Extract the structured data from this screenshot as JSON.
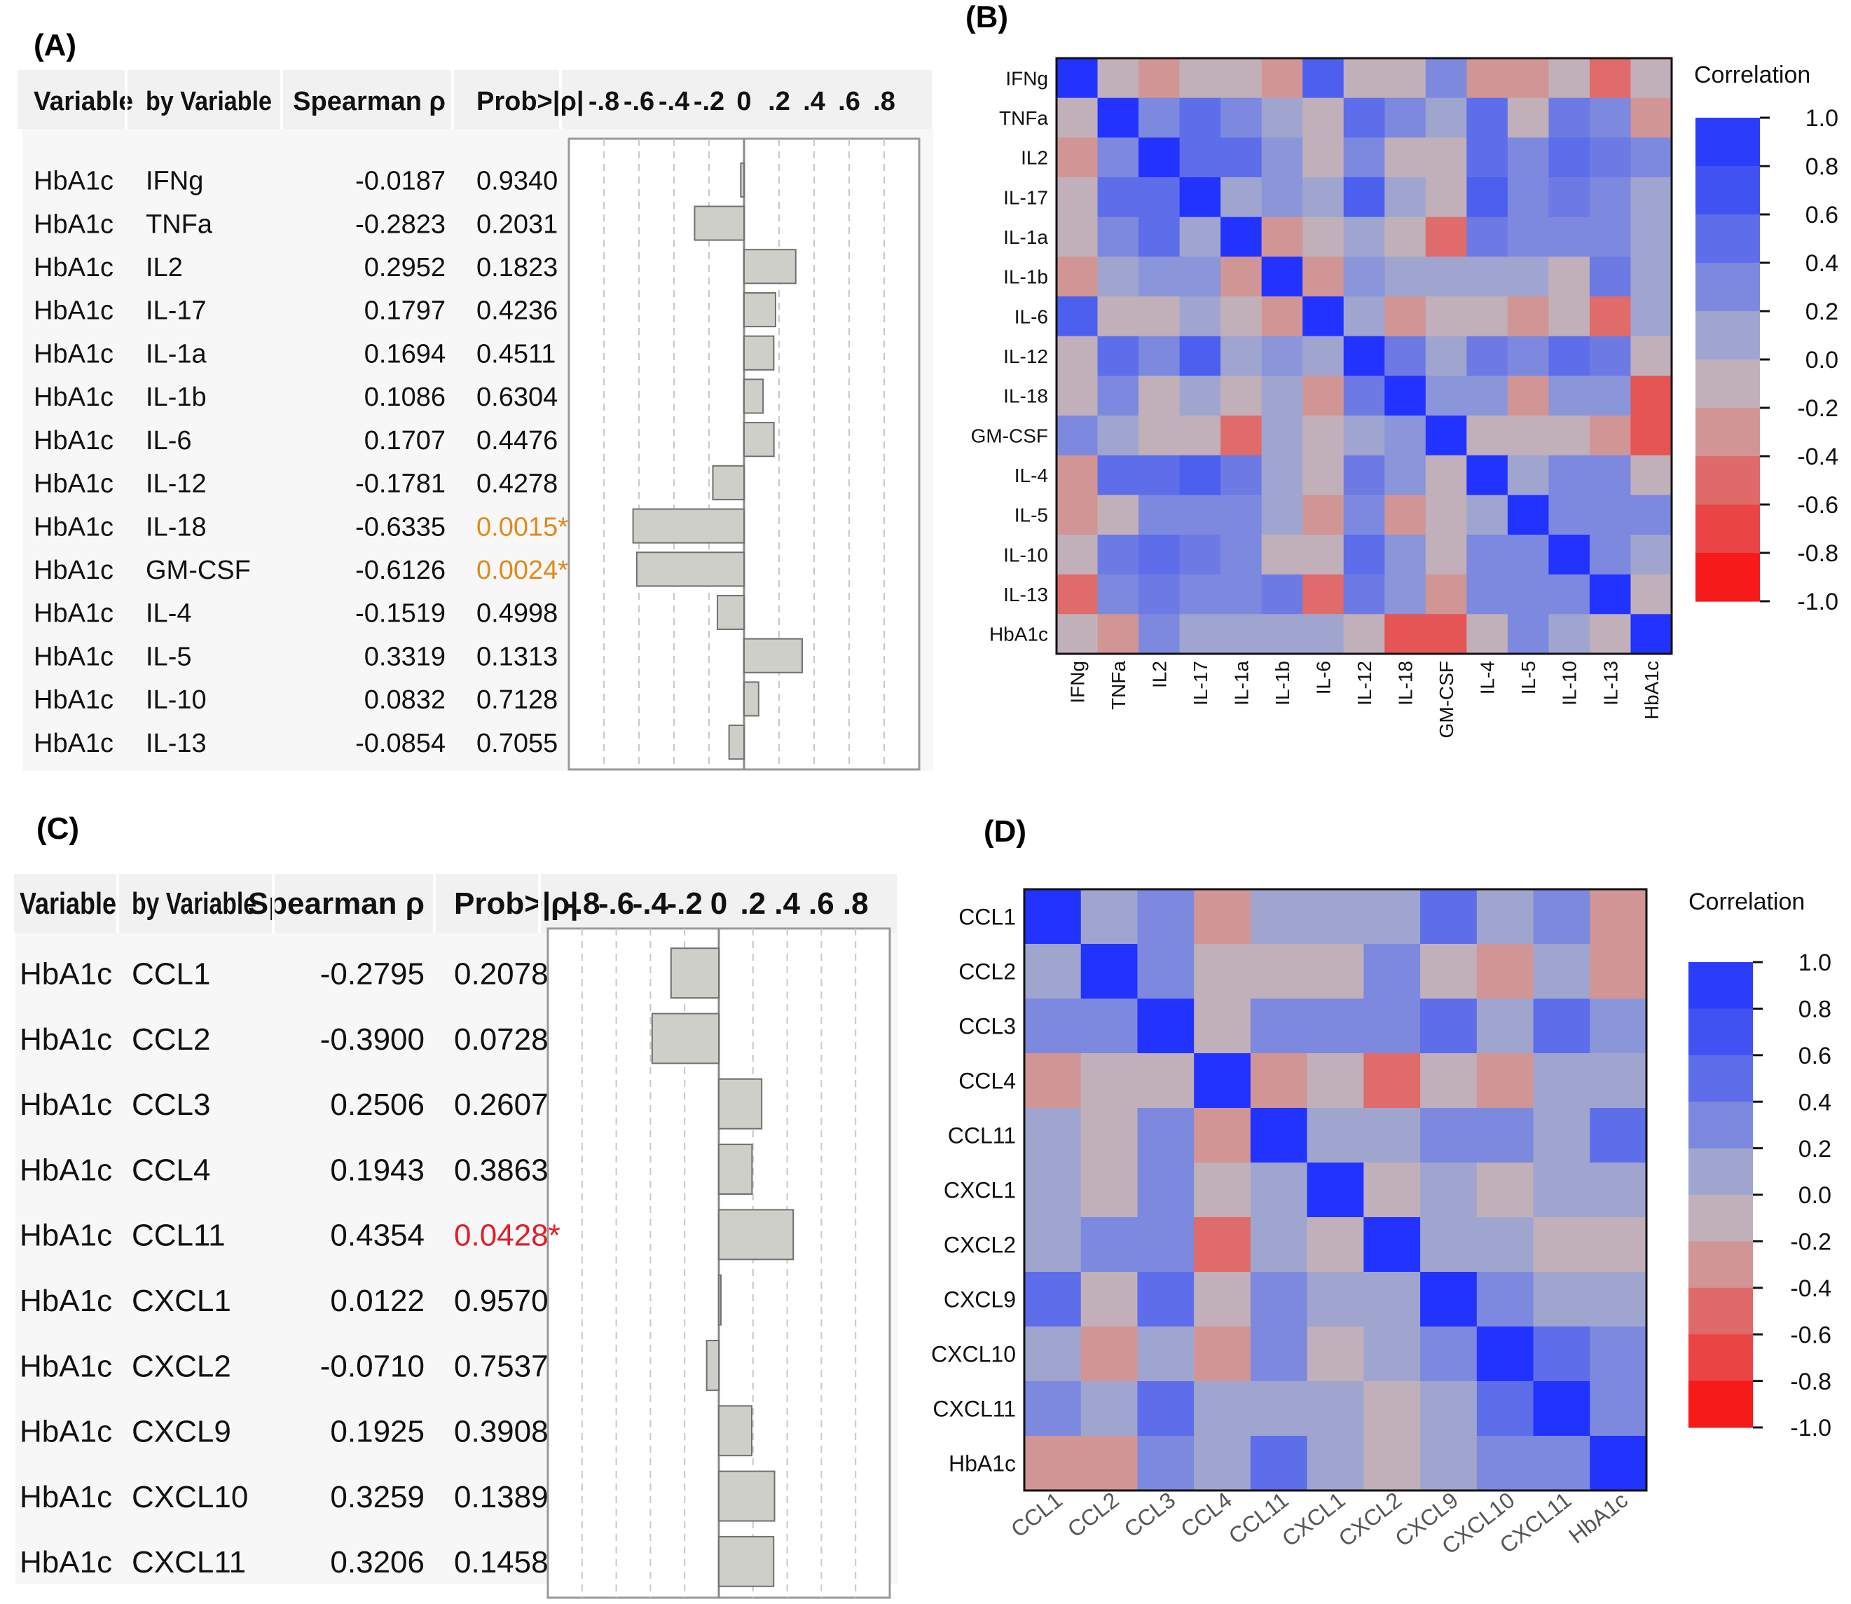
{
  "panel_labels": {
    "A": "(A)",
    "B": "(B)",
    "C": "(C)",
    "D": "(D)"
  },
  "colors": {
    "significant_orange": "#e08a1e",
    "significant_red": "#e0202a",
    "bar_fill": "#cfcfca",
    "bar_stroke": "#707070"
  },
  "chart_data": [
    {
      "type": "bar",
      "id": "A",
      "orientation": "horizontal",
      "headers": {
        "variable": "Variable",
        "by_variable": "by Variable",
        "rho": "Spearman ρ",
        "prob": "Prob>|ρ|"
      },
      "axis_tick_labels": [
        "-.8",
        "-.6",
        "-.4",
        "-.2",
        "0",
        ".2",
        ".4",
        ".6",
        ".8"
      ],
      "xlim": [
        -1,
        1
      ],
      "rows": [
        {
          "variable": "HbA1c",
          "by": "IFNg",
          "rho": "-0.0187",
          "value": -0.0187,
          "prob": "0.9340",
          "sig": false
        },
        {
          "variable": "HbA1c",
          "by": "TNFa",
          "rho": "-0.2823",
          "value": -0.2823,
          "prob": "0.2031",
          "sig": false
        },
        {
          "variable": "HbA1c",
          "by": "IL2",
          "rho": "0.2952",
          "value": 0.2952,
          "prob": "0.1823",
          "sig": false
        },
        {
          "variable": "HbA1c",
          "by": "IL-17",
          "rho": "0.1797",
          "value": 0.1797,
          "prob": "0.4236",
          "sig": false
        },
        {
          "variable": "HbA1c",
          "by": "IL-1a",
          "rho": "0.1694",
          "value": 0.1694,
          "prob": "0.4511",
          "sig": false
        },
        {
          "variable": "HbA1c",
          "by": "IL-1b",
          "rho": "0.1086",
          "value": 0.1086,
          "prob": "0.6304",
          "sig": false
        },
        {
          "variable": "HbA1c",
          "by": "IL-6",
          "rho": "0.1707",
          "value": 0.1707,
          "prob": "0.4476",
          "sig": false
        },
        {
          "variable": "HbA1c",
          "by": "IL-12",
          "rho": "-0.1781",
          "value": -0.1781,
          "prob": "0.4278",
          "sig": false
        },
        {
          "variable": "HbA1c",
          "by": "IL-18",
          "rho": "-0.6335",
          "value": -0.6335,
          "prob": "0.0015*",
          "sig": true
        },
        {
          "variable": "HbA1c",
          "by": "GM-CSF",
          "rho": "-0.6126",
          "value": -0.6126,
          "prob": "0.0024*",
          "sig": true
        },
        {
          "variable": "HbA1c",
          "by": "IL-4",
          "rho": "-0.1519",
          "value": -0.1519,
          "prob": "0.4998",
          "sig": false
        },
        {
          "variable": "HbA1c",
          "by": "IL-5",
          "rho": "0.3319",
          "value": 0.3319,
          "prob": "0.1313",
          "sig": false
        },
        {
          "variable": "HbA1c",
          "by": "IL-10",
          "rho": "0.0832",
          "value": 0.0832,
          "prob": "0.7128",
          "sig": false
        },
        {
          "variable": "HbA1c",
          "by": "IL-13",
          "rho": "-0.0854",
          "value": -0.0854,
          "prob": "0.7055",
          "sig": false
        }
      ]
    },
    {
      "type": "heatmap",
      "id": "B",
      "legend_title": "Correlation",
      "colorbar_ticks": [
        "1.0",
        "0.8",
        "0.6",
        "0.4",
        "0.2",
        "0.0",
        "-0.2",
        "-0.4",
        "-0.6",
        "-0.8",
        "-1.0"
      ],
      "zlim": [
        -1,
        1
      ],
      "labels": [
        "IFNg",
        "TNFa",
        "IL2",
        "IL-17",
        "IL-1a",
        "IL-1b",
        "IL-6",
        "IL-12",
        "IL-18",
        "GM-CSF",
        "IL-4",
        "IL-5",
        "IL-10",
        "IL-13",
        "HbA1c"
      ],
      "matrix": [
        [
          1.0,
          -0.1,
          -0.3,
          -0.1,
          -0.1,
          -0.3,
          0.6,
          -0.1,
          -0.1,
          0.3,
          -0.3,
          -0.3,
          -0.1,
          -0.5,
          -0.1
        ],
        [
          -0.1,
          1.0,
          0.3,
          0.5,
          0.3,
          0.1,
          -0.1,
          0.5,
          0.3,
          0.1,
          0.5,
          -0.1,
          0.4,
          0.3,
          -0.3
        ],
        [
          -0.3,
          0.3,
          1.0,
          0.5,
          0.5,
          0.2,
          -0.1,
          0.3,
          -0.1,
          -0.1,
          0.5,
          0.3,
          0.5,
          0.4,
          0.3
        ],
        [
          -0.1,
          0.5,
          0.5,
          1.0,
          0.1,
          0.2,
          0.1,
          0.6,
          0.1,
          -0.1,
          0.6,
          0.3,
          0.4,
          0.3,
          0.1
        ],
        [
          -0.1,
          0.3,
          0.5,
          0.1,
          1.0,
          -0.3,
          -0.1,
          0.1,
          -0.1,
          -0.5,
          0.4,
          0.3,
          0.3,
          0.3,
          0.1
        ],
        [
          -0.3,
          0.1,
          0.2,
          0.2,
          -0.3,
          1.0,
          -0.3,
          0.2,
          0.1,
          0.1,
          0.1,
          0.1,
          -0.1,
          0.4,
          0.1
        ],
        [
          0.6,
          -0.1,
          -0.1,
          0.1,
          -0.1,
          -0.3,
          1.0,
          0.1,
          -0.3,
          -0.1,
          -0.1,
          -0.3,
          -0.1,
          -0.5,
          0.1
        ],
        [
          -0.1,
          0.5,
          0.3,
          0.6,
          0.1,
          0.2,
          0.1,
          1.0,
          0.4,
          0.1,
          0.4,
          0.3,
          0.5,
          0.4,
          -0.1
        ],
        [
          -0.1,
          0.3,
          -0.1,
          0.1,
          -0.1,
          0.1,
          -0.3,
          0.4,
          1.0,
          0.2,
          0.2,
          -0.3,
          0.2,
          0.2,
          -0.6
        ],
        [
          0.3,
          0.1,
          -0.1,
          -0.1,
          -0.5,
          0.1,
          -0.1,
          0.1,
          0.2,
          1.0,
          -0.1,
          -0.1,
          -0.1,
          -0.3,
          -0.6
        ],
        [
          -0.3,
          0.5,
          0.5,
          0.6,
          0.4,
          0.1,
          -0.1,
          0.4,
          0.2,
          -0.1,
          1.0,
          0.1,
          0.3,
          0.3,
          -0.1
        ],
        [
          -0.3,
          -0.1,
          0.3,
          0.3,
          0.3,
          0.1,
          -0.3,
          0.3,
          -0.3,
          -0.1,
          0.1,
          1.0,
          0.3,
          0.3,
          0.3
        ],
        [
          -0.1,
          0.4,
          0.5,
          0.4,
          0.3,
          -0.1,
          -0.1,
          0.5,
          0.2,
          -0.1,
          0.3,
          0.3,
          1.0,
          0.3,
          0.1
        ],
        [
          -0.5,
          0.3,
          0.4,
          0.3,
          0.3,
          0.4,
          -0.5,
          0.4,
          0.2,
          -0.3,
          0.3,
          0.3,
          0.3,
          1.0,
          -0.1
        ],
        [
          -0.1,
          -0.3,
          0.3,
          0.1,
          0.1,
          0.1,
          0.1,
          -0.1,
          -0.6,
          -0.6,
          -0.1,
          0.3,
          0.1,
          -0.1,
          1.0
        ]
      ]
    },
    {
      "type": "bar",
      "id": "C",
      "orientation": "horizontal",
      "headers": {
        "variable": "Variable",
        "by_variable": "by Variable",
        "rho": "Spearman ρ",
        "prob": "Prob>|ρ|"
      },
      "axis_tick_labels": [
        "-.8",
        "-.6",
        "-.4",
        "-.2",
        "0",
        ".2",
        ".4",
        ".6",
        ".8"
      ],
      "xlim": [
        -1,
        1
      ],
      "rows": [
        {
          "variable": "HbA1c",
          "by": "CCL1",
          "rho": "-0.2795",
          "value": -0.2795,
          "prob": "0.2078",
          "sig": false
        },
        {
          "variable": "HbA1c",
          "by": "CCL2",
          "rho": "-0.3900",
          "value": -0.39,
          "prob": "0.0728",
          "sig": false
        },
        {
          "variable": "HbA1c",
          "by": "CCL3",
          "rho": "0.2506",
          "value": 0.2506,
          "prob": "0.2607",
          "sig": false
        },
        {
          "variable": "HbA1c",
          "by": "CCL4",
          "rho": "0.1943",
          "value": 0.1943,
          "prob": "0.3863",
          "sig": false
        },
        {
          "variable": "HbA1c",
          "by": "CCL11",
          "rho": "0.4354",
          "value": 0.4354,
          "prob": "0.0428*",
          "sig": true
        },
        {
          "variable": "HbA1c",
          "by": "CXCL1",
          "rho": "0.0122",
          "value": 0.0122,
          "prob": "0.9570",
          "sig": false
        },
        {
          "variable": "HbA1c",
          "by": "CXCL2",
          "rho": "-0.0710",
          "value": -0.071,
          "prob": "0.7537",
          "sig": false
        },
        {
          "variable": "HbA1c",
          "by": "CXCL9",
          "rho": "0.1925",
          "value": 0.1925,
          "prob": "0.3908",
          "sig": false
        },
        {
          "variable": "HbA1c",
          "by": "CXCL10",
          "rho": "0.3259",
          "value": 0.3259,
          "prob": "0.1389",
          "sig": false
        },
        {
          "variable": "HbA1c",
          "by": "CXCL11",
          "rho": "0.3206",
          "value": 0.3206,
          "prob": "0.1458",
          "sig": false
        }
      ]
    },
    {
      "type": "heatmap",
      "id": "D",
      "legend_title": "Correlation",
      "colorbar_ticks": [
        "1.0",
        "0.8",
        "0.6",
        "0.4",
        "0.2",
        "0.0",
        "-0.2",
        "-0.4",
        "-0.6",
        "-0.8",
        "-1.0"
      ],
      "zlim": [
        -1,
        1
      ],
      "labels": [
        "CCL1",
        "CCL2",
        "CCL3",
        "CCL4",
        "CCL11",
        "CXCL1",
        "CXCL2",
        "CXCL9",
        "CXCL10",
        "CXCL11",
        "HbA1c"
      ],
      "matrix": [
        [
          1.0,
          0.1,
          0.3,
          -0.3,
          0.1,
          0.1,
          0.1,
          0.5,
          0.1,
          0.3,
          -0.3
        ],
        [
          0.1,
          1.0,
          0.3,
          -0.1,
          -0.1,
          -0.1,
          0.3,
          -0.1,
          -0.3,
          0.1,
          -0.3
        ],
        [
          0.3,
          0.3,
          1.0,
          -0.1,
          0.3,
          0.3,
          0.3,
          0.5,
          0.1,
          0.5,
          0.2
        ],
        [
          -0.3,
          -0.1,
          -0.1,
          1.0,
          -0.3,
          -0.1,
          -0.5,
          -0.1,
          -0.3,
          0.1,
          0.1
        ],
        [
          0.1,
          -0.1,
          0.3,
          -0.3,
          1.0,
          0.1,
          0.1,
          0.3,
          0.3,
          0.1,
          0.5
        ],
        [
          0.1,
          -0.1,
          0.3,
          -0.1,
          0.1,
          1.0,
          -0.1,
          0.1,
          -0.1,
          0.1,
          0.1
        ],
        [
          0.1,
          0.3,
          0.3,
          -0.5,
          0.1,
          -0.1,
          1.0,
          0.1,
          0.1,
          -0.1,
          -0.1
        ],
        [
          0.5,
          -0.1,
          0.5,
          -0.1,
          0.3,
          0.1,
          0.1,
          1.0,
          0.3,
          0.1,
          0.1
        ],
        [
          0.1,
          -0.3,
          0.1,
          -0.3,
          0.3,
          -0.1,
          0.1,
          0.3,
          1.0,
          0.5,
          0.3
        ],
        [
          0.3,
          0.1,
          0.5,
          0.1,
          0.1,
          0.1,
          -0.1,
          0.1,
          0.5,
          1.0,
          0.3
        ],
        [
          -0.3,
          -0.3,
          0.3,
          0.1,
          0.5,
          0.1,
          -0.1,
          0.1,
          0.3,
          0.3,
          1.0
        ]
      ]
    }
  ]
}
